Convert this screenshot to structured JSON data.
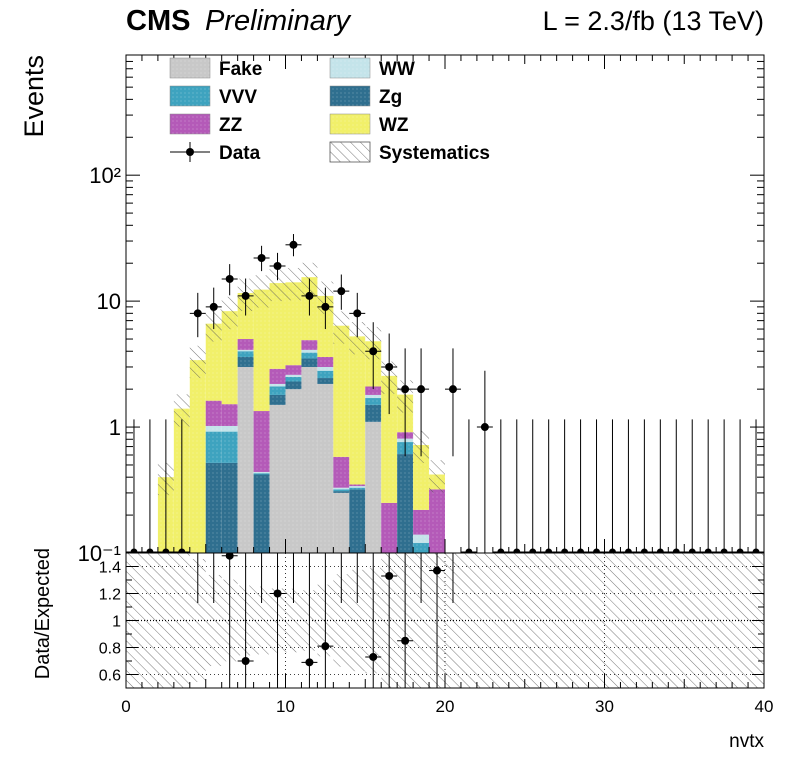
{
  "header": {
    "cms": "CMS",
    "preliminary": "Preliminary",
    "lumi": "L = 2.3/fb (13 TeV)"
  },
  "axes": {
    "top_ylabel": "Events",
    "bottom_ylabel": "Data/Expected",
    "xlabel": "nvtx"
  },
  "legend": [
    {
      "id": "fake",
      "label": "Fake",
      "color": "#c8c8c8",
      "kind": "fill"
    },
    {
      "id": "ww",
      "label": "WW",
      "color": "#c4e4ea",
      "kind": "fill"
    },
    {
      "id": "vvv",
      "label": "VVV",
      "color": "#3ea3bf",
      "kind": "fill"
    },
    {
      "id": "zg",
      "label": "Zg",
      "color": "#2f6f8f",
      "kind": "fill"
    },
    {
      "id": "zz",
      "label": "ZZ",
      "color": "#b45ab8",
      "kind": "fill"
    },
    {
      "id": "wz",
      "label": "WZ",
      "color": "#f1f06a",
      "kind": "fill"
    },
    {
      "id": "data",
      "label": "Data",
      "color": "#000000",
      "kind": "marker"
    },
    {
      "id": "syst",
      "label": "Systematics",
      "color": "#555555",
      "kind": "hatch"
    }
  ],
  "chart_data": {
    "type": "bar",
    "subtype": "stacked-histogram-with-ratio",
    "bin_edges_start": 0,
    "bin_width": 1,
    "n_bins": 40,
    "xlim": [
      0,
      40
    ],
    "x_ticks": [
      "0",
      "10",
      "20",
      "30",
      "40"
    ],
    "top": {
      "yscale": "log",
      "ylim": [
        0.1,
        900
      ],
      "y_ticks": [
        {
          "value": 0.1,
          "label": "10⁻¹"
        },
        {
          "value": 1,
          "label": "1"
        },
        {
          "value": 10,
          "label": "10"
        },
        {
          "value": 100,
          "label": "10²"
        }
      ]
    },
    "stack_order": [
      "fake",
      "zg",
      "vvv",
      "ww",
      "zz",
      "wz"
    ],
    "series": [
      {
        "name": "Fake",
        "id": "fake",
        "values": [
          0,
          0,
          0,
          0,
          0,
          0.02,
          0.02,
          3,
          0.02,
          1.5,
          2,
          3,
          2.2,
          0.3,
          0.02,
          1.1,
          0.02,
          0.01,
          0.02,
          0.01,
          0,
          0,
          0,
          0,
          0,
          0,
          0,
          0,
          0,
          0,
          0,
          0,
          0,
          0,
          0,
          0,
          0,
          0,
          0,
          0
        ]
      },
      {
        "name": "Zg",
        "id": "zg",
        "values": [
          0,
          0,
          0,
          0,
          0,
          0.5,
          0.5,
          0.6,
          0.4,
          0.3,
          0.3,
          0.5,
          0.25,
          0.01,
          0.3,
          0.4,
          0.01,
          0.6,
          0.05,
          0.01,
          0,
          0,
          0,
          0,
          0,
          0,
          0,
          0,
          0,
          0,
          0,
          0,
          0,
          0,
          0,
          0,
          0,
          0,
          0,
          0
        ]
      },
      {
        "name": "VVV",
        "id": "vvv",
        "values": [
          0,
          0,
          0,
          0,
          0,
          0.4,
          0.4,
          0.4,
          0.01,
          0.3,
          0.2,
          0.4,
          0.35,
          0.01,
          0.01,
          0.2,
          0.01,
          0.15,
          0.05,
          0.01,
          0,
          0,
          0,
          0,
          0,
          0,
          0,
          0,
          0,
          0,
          0,
          0,
          0,
          0,
          0,
          0,
          0,
          0,
          0,
          0
        ]
      },
      {
        "name": "WW",
        "id": "ww",
        "values": [
          0,
          0,
          0,
          0,
          0,
          0.1,
          0.1,
          0.1,
          0.01,
          0.1,
          0.1,
          0.2,
          0.2,
          0.01,
          0.01,
          0.1,
          0.01,
          0.05,
          0.02,
          0.01,
          0,
          0,
          0,
          0,
          0,
          0,
          0,
          0,
          0,
          0,
          0,
          0,
          0,
          0,
          0,
          0,
          0,
          0,
          0,
          0
        ]
      },
      {
        "name": "ZZ",
        "id": "zz",
        "values": [
          0,
          0,
          0,
          0,
          0,
          0.6,
          0.5,
          0.9,
          0.9,
          0.7,
          0.5,
          0.8,
          0.6,
          0.25,
          0.01,
          0.3,
          0.2,
          0.1,
          0.08,
          0.28,
          0,
          0,
          0,
          0,
          0,
          0,
          0,
          0,
          0,
          0,
          0,
          0,
          0,
          0,
          0,
          0,
          0,
          0,
          0,
          0
        ]
      },
      {
        "name": "WZ",
        "id": "wz",
        "values": [
          0,
          0,
          0.4,
          1.4,
          3.4,
          5,
          6.8,
          6.6,
          11,
          11,
          11,
          10.6,
          7.4,
          5.8,
          4.9,
          2.7,
          2.3,
          0.9,
          0.5,
          0.1,
          0.01,
          0,
          0,
          0,
          0,
          0,
          0,
          0,
          0,
          0,
          0,
          0,
          0,
          0,
          0,
          0,
          0,
          0,
          0,
          0
        ]
      }
    ],
    "data_points": [
      {
        "x": 4.5,
        "y": 8
      },
      {
        "x": 5.5,
        "y": 9
      },
      {
        "x": 6.5,
        "y": 15
      },
      {
        "x": 7.5,
        "y": 11
      },
      {
        "x": 8.5,
        "y": 22
      },
      {
        "x": 9.5,
        "y": 19
      },
      {
        "x": 10.5,
        "y": 28
      },
      {
        "x": 11.5,
        "y": 11
      },
      {
        "x": 12.5,
        "y": 9
      },
      {
        "x": 13.5,
        "y": 12
      },
      {
        "x": 14.5,
        "y": 8
      },
      {
        "x": 15.5,
        "y": 4
      },
      {
        "x": 16.5,
        "y": 3
      },
      {
        "x": 17.5,
        "y": 2
      },
      {
        "x": 18.5,
        "y": 2
      },
      {
        "x": 20.5,
        "y": 2
      },
      {
        "x": 22.5,
        "y": 1
      }
    ],
    "zero_data_bins_x": [
      0.5,
      1.5,
      2.5,
      3.5,
      21.5,
      23.5,
      24.5,
      25.5,
      26.5,
      27.5,
      28.5,
      29.5,
      30.5,
      31.5,
      32.5,
      33.5,
      34.5,
      35.5,
      36.5,
      37.5,
      38.5,
      39.5
    ],
    "ratio": {
      "ylim": [
        0.5,
        1.5
      ],
      "y_ticks": [
        "0.6",
        "0.8",
        "1",
        "1.2",
        "1.4"
      ],
      "reference_line": 1,
      "points": [
        {
          "x": 6.5,
          "y": 1.48
        },
        {
          "x": 7.5,
          "y": 0.7
        },
        {
          "x": 9.5,
          "y": 1.2
        },
        {
          "x": 11.5,
          "y": 0.69
        },
        {
          "x": 12.5,
          "y": 0.81
        },
        {
          "x": 15.5,
          "y": 0.73
        },
        {
          "x": 16.5,
          "y": 1.33
        },
        {
          "x": 17.5,
          "y": 0.85
        },
        {
          "x": 19.5,
          "y": 1.37
        }
      ]
    }
  }
}
